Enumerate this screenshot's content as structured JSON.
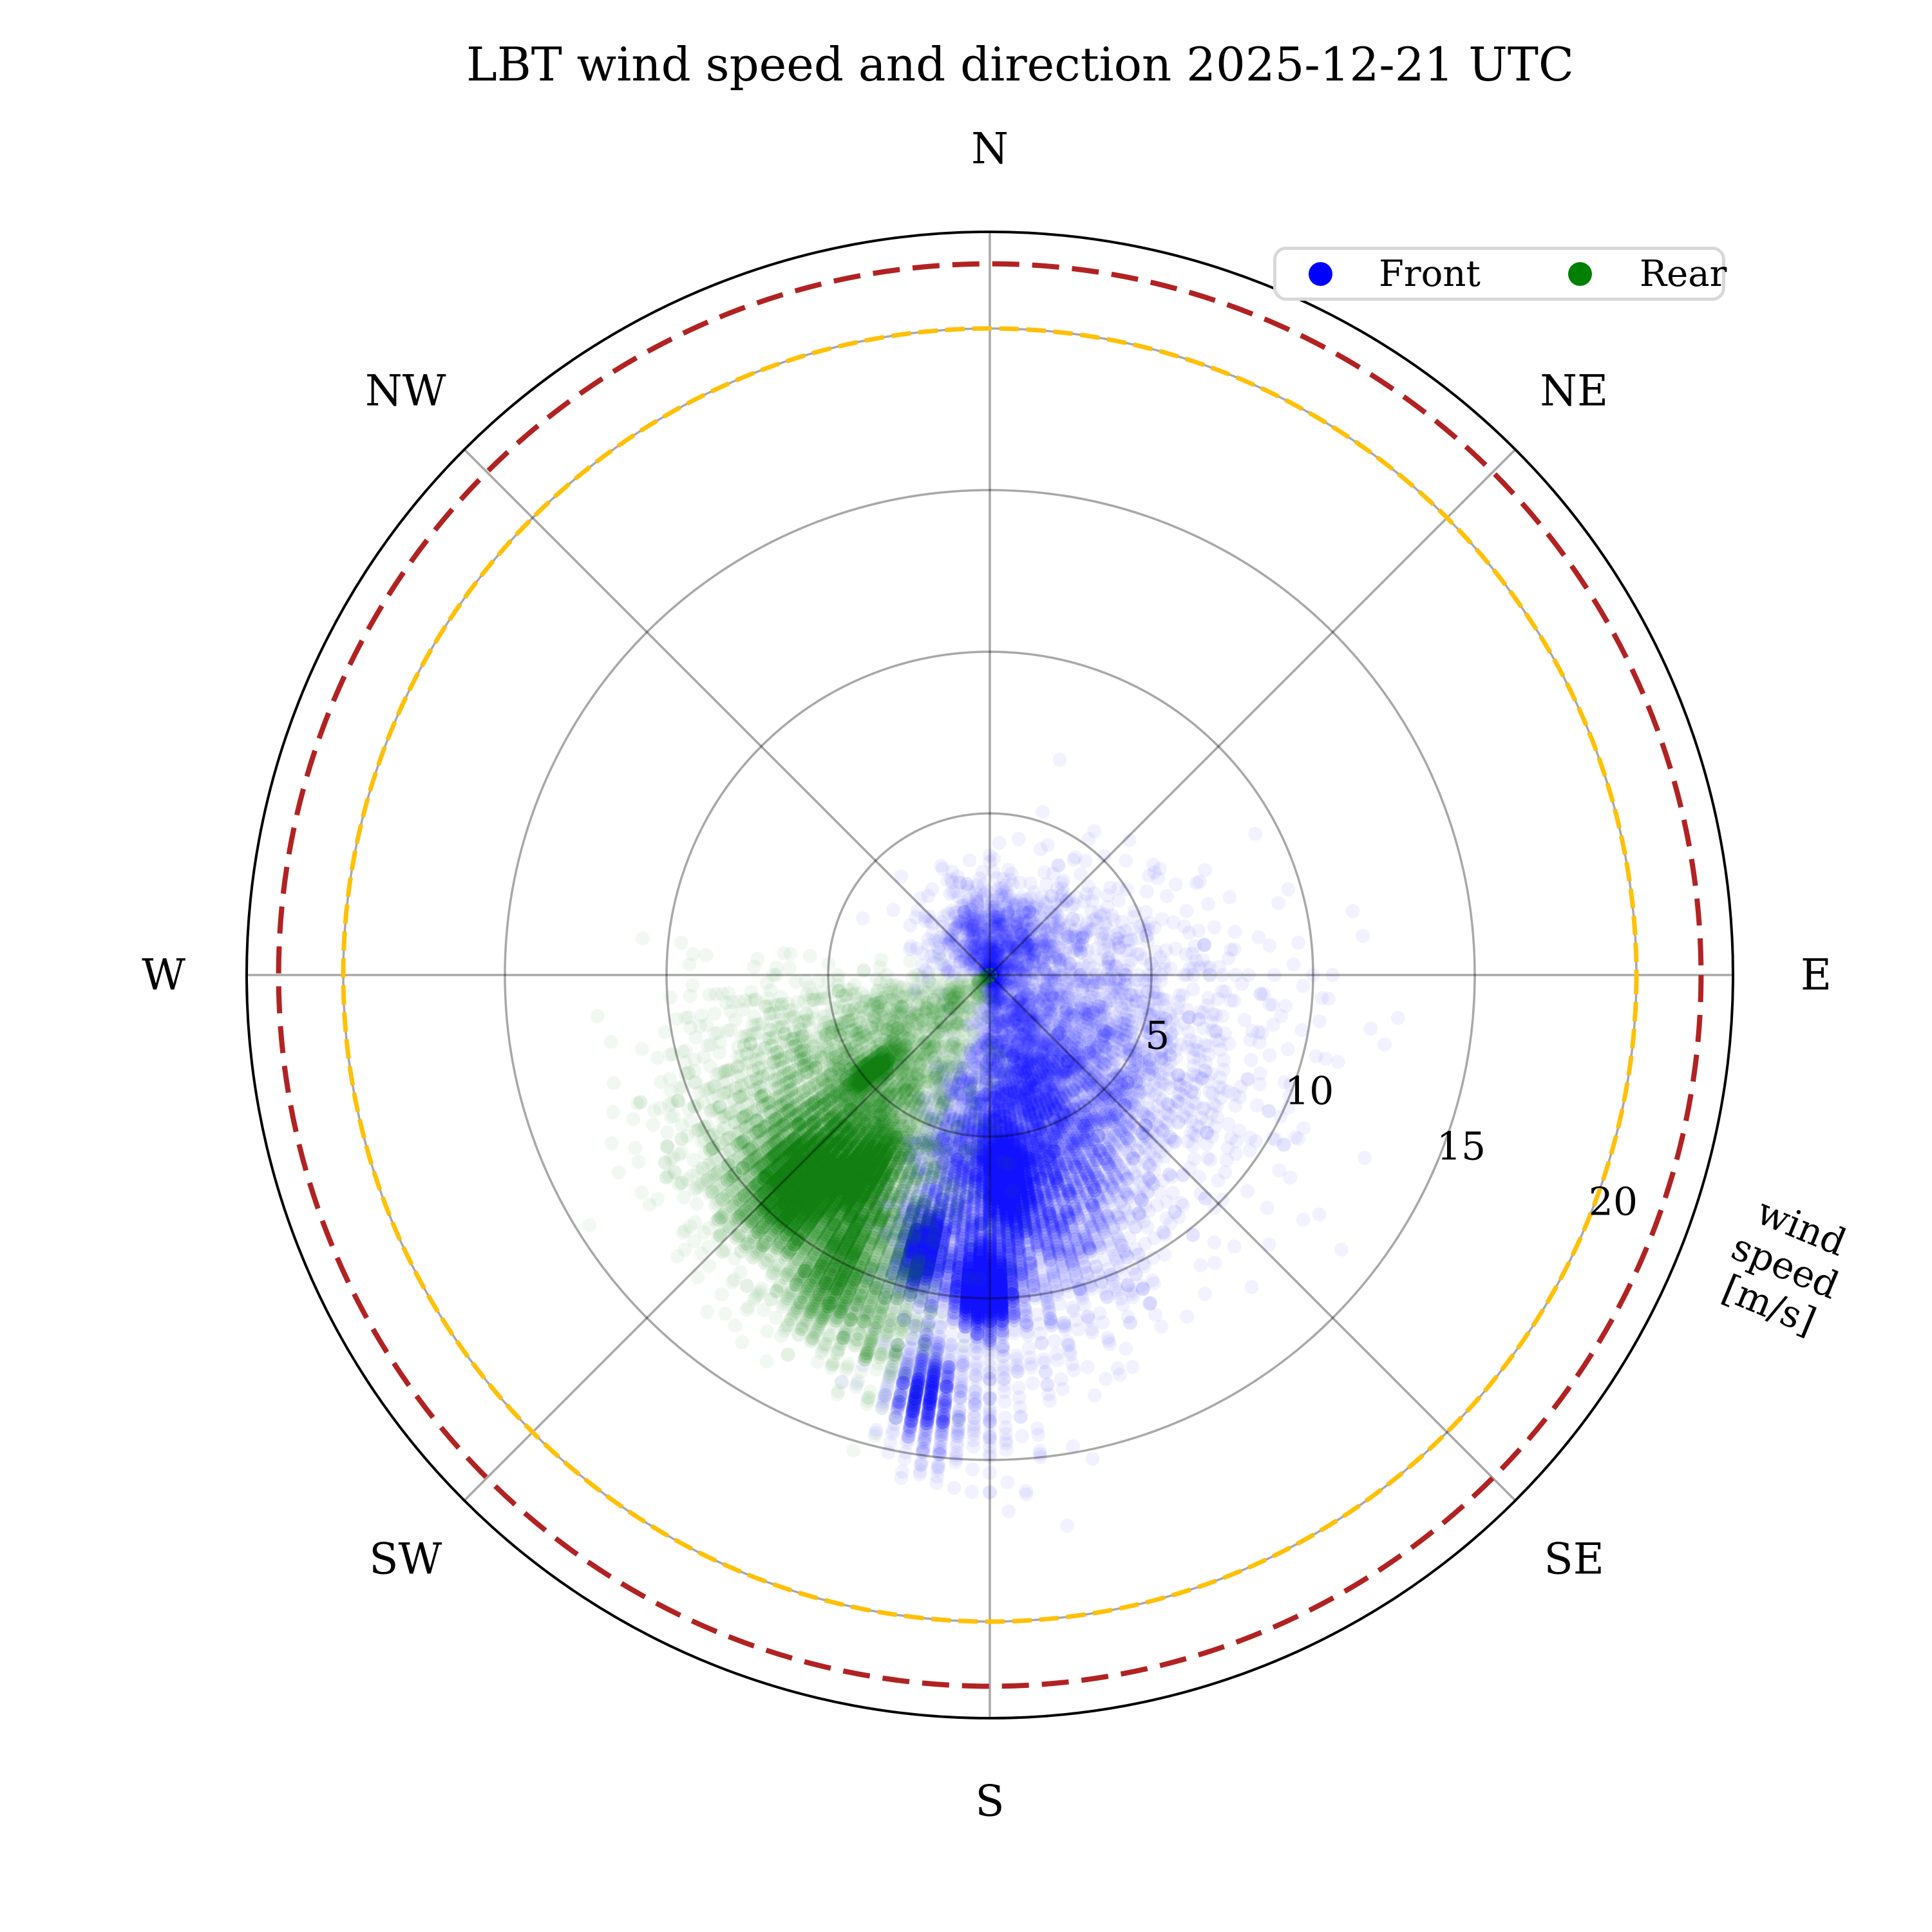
{
  "title": "LBT wind speed and direction 2025-12-21 UTC",
  "legend": {
    "items": [
      {
        "label": "Front",
        "color": "#0000FF"
      },
      {
        "label": "Rear",
        "color": "#008000"
      }
    ]
  },
  "radial_axis_title": {
    "line1": "wind",
    "line2": "speed",
    "line3": "[m/s]"
  },
  "chart_data": {
    "type": "scatter",
    "projection": "polar",
    "orientation": "compass, N at top, clockwise",
    "title": "LBT wind speed and direction 2025-12-21 UTC",
    "radial_unit": "m/s",
    "radial_axis_label": "wind speed [m/s]",
    "radial_ticks": [
      5,
      10,
      15,
      20
    ],
    "radial_max": 23,
    "radial_tick_angle_deg": 110,
    "compass_labels": [
      "N",
      "NE",
      "E",
      "SE",
      "S",
      "SW",
      "W",
      "NW"
    ],
    "grid": "on",
    "grid_color_rgba": "rgba(0,0,0,0.34)",
    "outer_ring_color": "#000000",
    "reference_rings": [
      {
        "name": "warning wind limit",
        "radius_ms": 20,
        "color": "#FFC107",
        "style": "dashed",
        "dash": [
          30,
          12
        ],
        "width": 7
      },
      {
        "name": "critical wind limit",
        "radius_ms": 22,
        "color": "#B22222",
        "style": "dashed",
        "dash": [
          42,
          20
        ],
        "width": 8
      }
    ],
    "center_marker": {
      "color": "#008000",
      "style": "dotted-circle",
      "radius_px": 10
    },
    "marker": {
      "radius_px": 11,
      "alpha": 0.055
    },
    "azimuth_quantization_deg": 2,
    "speed_quantization_ms": 0.1,
    "random_seed": 20251221,
    "legend_position": "upper right",
    "series": [
      {
        "name": "Front",
        "color": "#0000FF",
        "clusters": [
          {
            "azimuth_deg": 176,
            "azimuth_std_deg": 14,
            "speed_ms": 6.8,
            "speed_std_ms": 2.2,
            "count": 4200
          },
          {
            "azimuth_deg": 152,
            "azimuth_std_deg": 20,
            "speed_ms": 4.3,
            "speed_std_ms": 2.0,
            "count": 2300
          },
          {
            "azimuth_deg": 115,
            "azimuth_std_deg": 22,
            "speed_ms": 5.5,
            "speed_std_ms": 2.6,
            "count": 700
          },
          {
            "azimuth_deg": 8,
            "azimuth_std_deg": 48,
            "speed_ms": 1.4,
            "speed_std_ms": 0.9,
            "count": 900
          },
          {
            "azimuth_deg": 75,
            "azimuth_std_deg": 28,
            "speed_ms": 2.8,
            "speed_std_ms": 1.6,
            "count": 400
          },
          {
            "azimuth_deg": 181,
            "azimuth_std_deg": 2.5,
            "speed_ms": 9.7,
            "speed_std_ms": 0.6,
            "count": 2000
          },
          {
            "azimuth_deg": 193.5,
            "azimuth_std_deg": 2,
            "speed_ms": 8.7,
            "speed_std_ms": 0.6,
            "count": 1100
          },
          {
            "azimuth_deg": 175,
            "azimuth_std_deg": 3,
            "speed_ms": 6.4,
            "speed_std_ms": 0.7,
            "count": 1400
          },
          {
            "azimuth_deg": 189,
            "azimuth_std_deg": 2,
            "speed_ms": 13.1,
            "speed_std_ms": 0.8,
            "count": 600
          },
          {
            "azimuth_deg": 183,
            "azimuth_std_deg": 5,
            "speed_ms": 13.5,
            "speed_std_ms": 1.3,
            "count": 200
          }
        ]
      },
      {
        "name": "Rear",
        "color": "#008000",
        "clusters": [
          {
            "azimuth_deg": 219,
            "azimuth_std_deg": 10,
            "speed_ms": 8.2,
            "speed_std_ms": 1.6,
            "count": 3200
          },
          {
            "azimuth_deg": 222,
            "azimuth_std_deg": 17,
            "speed_ms": 6.3,
            "speed_std_ms": 2.6,
            "count": 1800
          },
          {
            "azimuth_deg": 222,
            "azimuth_std_deg": 4,
            "speed_ms": 8.6,
            "speed_std_ms": 0.9,
            "count": 2300
          },
          {
            "azimuth_deg": 231,
            "azimuth_std_deg": 2,
            "speed_ms": 4.8,
            "speed_std_ms": 0.5,
            "count": 450
          },
          {
            "azimuth_deg": 212.5,
            "azimuth_std_deg": 3,
            "speed_ms": 7.2,
            "speed_std_ms": 0.7,
            "count": 900
          },
          {
            "azimuth_deg": 207,
            "azimuth_std_deg": 3,
            "speed_ms": 10.3,
            "speed_std_ms": 1.0,
            "count": 700
          },
          {
            "azimuth_deg": 240,
            "azimuth_std_deg": 14,
            "speed_ms": 4.4,
            "speed_std_ms": 1.9,
            "count": 700
          },
          {
            "azimuth_deg": 198,
            "azimuth_std_deg": 4,
            "speed_ms": 11.2,
            "speed_std_ms": 1.2,
            "count": 350
          },
          {
            "azimuth_deg": 248,
            "azimuth_std_deg": 10,
            "speed_ms": 7.5,
            "speed_std_ms": 2.0,
            "count": 220
          }
        ]
      }
    ]
  }
}
